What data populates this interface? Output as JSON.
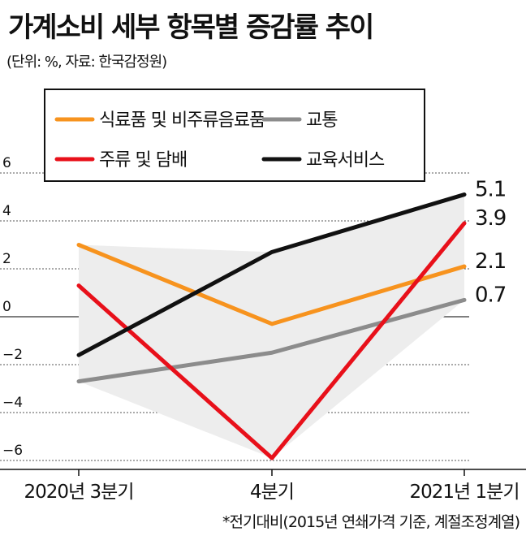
{
  "title": "가계소비 세부 항목별 증감률 추이",
  "subtitle": "(단위: %, 자료: 한국감정원)",
  "footnote": "*전기대비(2015년 연쇄가격 기준, 계절조정계열)",
  "chart_data": {
    "type": "line",
    "categories": [
      "2020년 3분기",
      "4분기",
      "2021년 1분기"
    ],
    "yticks": [
      "6",
      "4",
      "2",
      "0",
      "−2",
      "−4",
      "−6"
    ],
    "ylim": [
      -6.5,
      6.5
    ],
    "shaded_range": true,
    "series": [
      {
        "name": "식료품 및 비주류음료품",
        "values": [
          3.0,
          -0.3,
          2.1
        ],
        "color": "#f7931e"
      },
      {
        "name": "교통",
        "values": [
          -2.7,
          -1.5,
          0.7
        ],
        "color": "#8c8c8c"
      },
      {
        "name": "주류 및 담배",
        "values": [
          1.3,
          -5.9,
          3.9
        ],
        "color": "#e8101a"
      },
      {
        "name": "교육서비스",
        "values": [
          -1.6,
          2.7,
          5.1
        ],
        "color": "#111111"
      }
    ],
    "end_labels": [
      "5.1",
      "3.9",
      "2.1",
      "0.7"
    ],
    "legend": "top-left"
  }
}
